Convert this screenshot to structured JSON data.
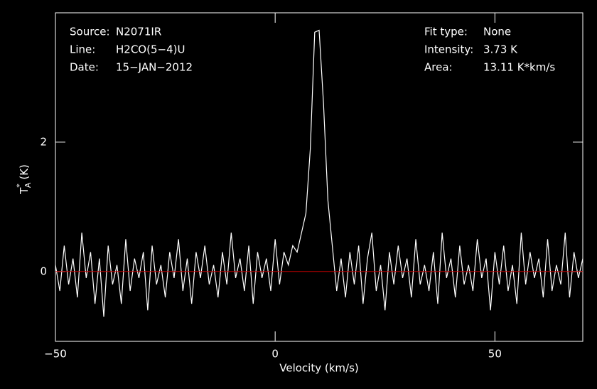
{
  "chart_data": {
    "type": "line",
    "x_label": "Velocity (km/s)",
    "y_label": {
      "symbol": "T",
      "sup": "*",
      "sub": "A",
      "unit": "(K)"
    },
    "info_left": [
      {
        "label": "Source:",
        "value": "N2071IR"
      },
      {
        "label": "Line:",
        "value": "H2CO(5−4)U"
      },
      {
        "label": "Date:",
        "value": "15−JAN−2012"
      }
    ],
    "info_right": [
      {
        "label": "Fit type:",
        "value": "None"
      },
      {
        "label": "Intensity:",
        "value": "3.73 K"
      },
      {
        "label": "Area:",
        "value": "13.11 K*km/s"
      }
    ],
    "xlim": [
      -50,
      70
    ],
    "ylim": [
      -1.08,
      4
    ],
    "xticks": [
      {
        "value": -50,
        "label": "−50"
      },
      0,
      50
    ],
    "yticks": [
      0,
      2
    ],
    "baseline_color": "#c00000",
    "series": [
      {
        "color": "#ffffff",
        "x": [
          -50,
          -49,
          -48,
          -47,
          -46,
          -45,
          -44,
          -43,
          -42,
          -41,
          -40,
          -39,
          -38,
          -37,
          -36,
          -35,
          -34,
          -33,
          -32,
          -31,
          -30,
          -29,
          -28,
          -27,
          -26,
          -25,
          -24,
          -23,
          -22,
          -21,
          -20,
          -19,
          -18,
          -17,
          -16,
          -15,
          -14,
          -13,
          -12,
          -11,
          -10,
          -9,
          -8,
          -7,
          -6,
          -5,
          -4,
          -3,
          -2,
          -1,
          0,
          1,
          2,
          3,
          4,
          5,
          6,
          7,
          8,
          9,
          10,
          11,
          12,
          13,
          14,
          15,
          16,
          17,
          18,
          19,
          20,
          21,
          22,
          23,
          24,
          25,
          26,
          27,
          28,
          29,
          30,
          31,
          32,
          33,
          34,
          35,
          36,
          37,
          38,
          39,
          40,
          41,
          42,
          43,
          44,
          45,
          46,
          47,
          48,
          49,
          50,
          51,
          52,
          53,
          54,
          55,
          56,
          57,
          58,
          59,
          60,
          61,
          62,
          63,
          64,
          65,
          66,
          67,
          68,
          69,
          70
        ],
        "values": [
          0.1,
          -0.3,
          0.4,
          -0.2,
          0.2,
          -0.4,
          0.6,
          -0.1,
          0.3,
          -0.5,
          0.2,
          -0.7,
          0.4,
          -0.2,
          0.1,
          -0.5,
          0.5,
          -0.3,
          0.2,
          -0.1,
          0.3,
          -0.6,
          0.4,
          -0.2,
          0.1,
          -0.4,
          0.3,
          -0.1,
          0.5,
          -0.3,
          0.2,
          -0.5,
          0.3,
          -0.1,
          0.4,
          -0.2,
          0.1,
          -0.4,
          0.3,
          -0.2,
          0.6,
          -0.1,
          0.2,
          -0.3,
          0.4,
          -0.5,
          0.3,
          -0.1,
          0.2,
          -0.3,
          0.5,
          -0.2,
          0.3,
          0.1,
          0.4,
          0.3,
          0.6,
          0.9,
          1.9,
          3.7,
          3.73,
          2.6,
          1.1,
          0.4,
          -0.3,
          0.2,
          -0.4,
          0.3,
          -0.2,
          0.4,
          -0.5,
          0.2,
          0.6,
          -0.3,
          0.1,
          -0.6,
          0.3,
          -0.2,
          0.4,
          -0.1,
          0.2,
          -0.4,
          0.5,
          -0.2,
          0.1,
          -0.3,
          0.3,
          -0.5,
          0.6,
          -0.1,
          0.2,
          -0.4,
          0.4,
          -0.2,
          0.1,
          -0.3,
          0.5,
          -0.1,
          0.2,
          -0.6,
          0.3,
          -0.2,
          0.4,
          -0.3,
          0.1,
          -0.5,
          0.6,
          -0.2,
          0.3,
          -0.1,
          0.2,
          -0.4,
          0.5,
          -0.3,
          0.1,
          -0.2,
          0.6,
          -0.4,
          0.3,
          -0.1,
          0.2
        ]
      }
    ]
  }
}
